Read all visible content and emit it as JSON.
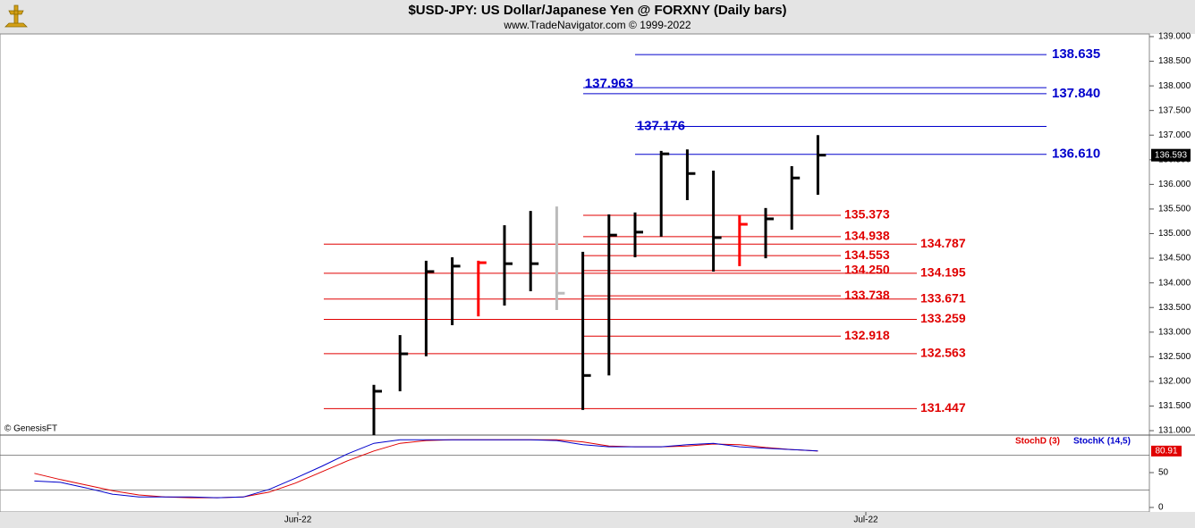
{
  "chart_data": [
    {
      "type": "ohlc",
      "title": "$USD-JPY:  US Dollar/Japanese Yen @ FORXNY  (Daily bars)",
      "subtitle": "www.TradeNavigator.com © 1999-2022",
      "watermark": "© GenesisFT",
      "ylim": [
        130.91,
        139.054
      ],
      "yticks": [
        {
          "value": 131,
          "label": "131.000"
        },
        {
          "value": 131.5,
          "label": "131.500"
        },
        {
          "value": 132,
          "label": "132.000"
        },
        {
          "value": 132.5,
          "label": "132.500"
        },
        {
          "value": 133,
          "label": "133.000"
        },
        {
          "value": 133.5,
          "label": "133.500"
        },
        {
          "value": 134,
          "label": "134.000"
        },
        {
          "value": 134.5,
          "label": "134.500"
        },
        {
          "value": 135,
          "label": "135.000"
        },
        {
          "value": 135.5,
          "label": "135.500"
        },
        {
          "value": 136,
          "label": "136.000"
        },
        {
          "value": 136.5,
          "label": "136.500"
        },
        {
          "value": 137,
          "label": "137.000"
        },
        {
          "value": 137.5,
          "label": "137.500"
        },
        {
          "value": 138,
          "label": "138.000"
        },
        {
          "value": 138.5,
          "label": "138.500"
        },
        {
          "value": 139,
          "label": "139.000"
        }
      ],
      "x_labels": [
        "Jun-22",
        "Jul-22"
      ],
      "high": [
        131.93,
        132.94,
        134.45,
        134.52,
        134.45,
        135.17,
        135.46,
        135.55,
        134.63,
        135.39,
        135.43,
        136.68,
        136.71,
        136.28,
        135.37,
        135.52,
        136.37,
        137.0
      ],
      "low": [
        130.91,
        131.8,
        132.51,
        133.14,
        133.32,
        133.54,
        133.83,
        133.45,
        131.42,
        132.12,
        134.52,
        134.94,
        135.68,
        134.23,
        134.34,
        134.5,
        135.08,
        135.79
      ],
      "close": [
        131.8,
        132.56,
        134.23,
        134.34,
        134.41,
        134.39,
        134.39,
        133.79,
        132.12,
        134.97,
        135.03,
        136.62,
        136.22,
        134.92,
        135.19,
        135.3,
        136.13,
        136.593
      ],
      "colors": [
        "#000000",
        "#000000",
        "#000000",
        "#000000",
        "#ff0000",
        "#000000",
        "#000000",
        "#bbbbbb",
        "#000000",
        "#000000",
        "#000000",
        "#000000",
        "#000000",
        "#000000",
        "#ff0000",
        "#000000",
        "#000000",
        "#000000"
      ],
      "levels": {
        "values": [
          138.635,
          137.963,
          137.84,
          137.176,
          136.61,
          135.373,
          134.938,
          134.787,
          134.553,
          134.25,
          134.195,
          133.738,
          133.671,
          133.259,
          132.918,
          132.563,
          131.447
        ],
        "value_labels": [
          "138.635",
          "137.963",
          "137.840",
          "137.176",
          "136.610",
          "135.373",
          "134.938",
          "134.787",
          "134.553",
          "134.250",
          "134.195",
          "133.738",
          "133.671",
          "133.259",
          "132.918",
          "132.563",
          "131.447"
        ],
        "colors": [
          "#0000cc",
          "#0000cc",
          "#0000cc",
          "#0000cc",
          "#0000cc",
          "#e00000",
          "#e00000",
          "#e00000",
          "#e00000",
          "#e00000",
          "#e00000",
          "#e00000",
          "#e00000",
          "#e00000",
          "#e00000",
          "#e00000",
          "#e00000"
        ]
      }
    },
    {
      "type": "line",
      "ylim": [
        -6.4,
        103.8
      ],
      "yticks": [
        0,
        50
      ],
      "reference_lines": [
        25,
        75
      ],
      "series": [
        {
          "name": "StochD (3)",
          "color": "#e00000",
          "values": [
            49,
            40,
            32,
            24,
            18,
            15,
            14,
            14,
            15,
            22,
            35,
            51,
            67,
            81,
            92,
            96,
            97,
            97,
            97,
            97,
            97,
            94,
            88,
            87,
            87,
            88,
            91,
            90,
            86,
            83,
            80.91
          ]
        },
        {
          "name": "StochK (14,5)",
          "color": "#0000cc",
          "values": [
            38,
            36,
            28,
            19,
            15,
            15,
            15,
            14,
            15,
            26,
            42,
            59,
            77,
            92,
            97,
            97,
            97,
            97,
            97,
            97,
            96,
            90,
            87,
            87,
            87,
            90,
            92,
            87,
            85,
            83,
            81
          ]
        }
      ]
    }
  ]
}
